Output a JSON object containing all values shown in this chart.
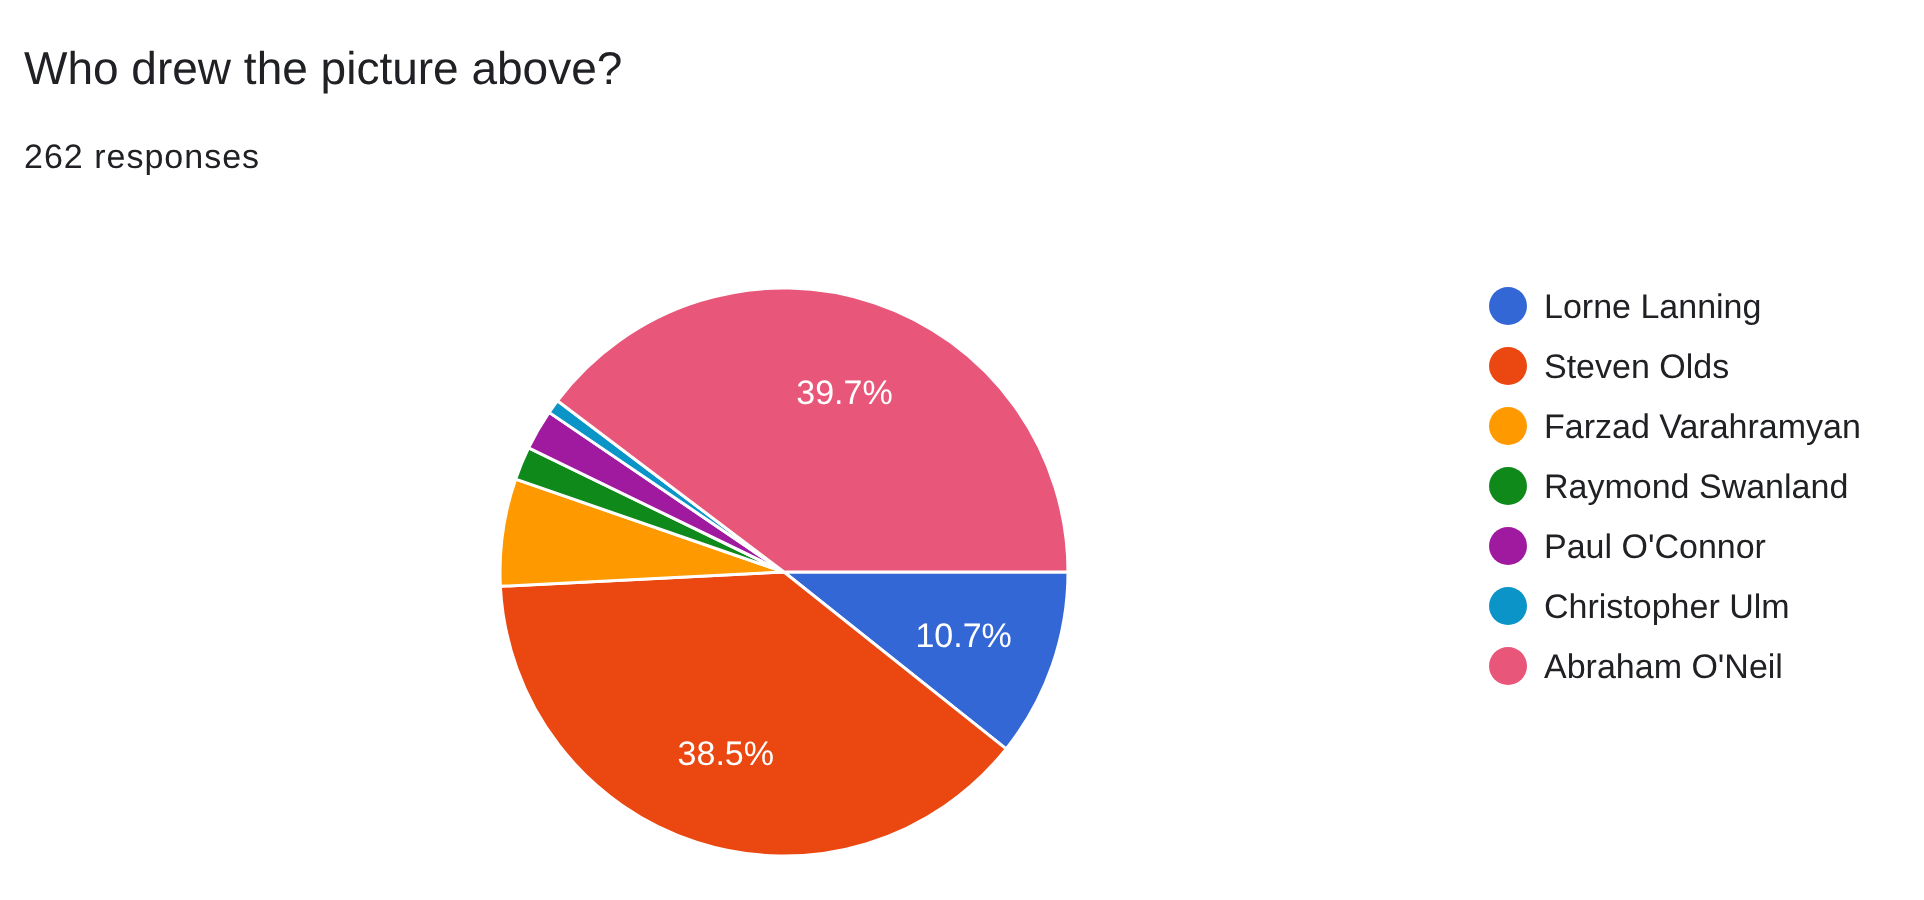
{
  "chart_data": {
    "type": "pie",
    "title": "Who drew the picture above?",
    "subtitle": "262 responses",
    "categories": [
      "Lorne Lanning",
      "Steven Olds",
      "Farzad Varahramyan",
      "Raymond Swanland",
      "Paul O'Connor",
      "Christopher Ulm",
      "Abraham O'Neil"
    ],
    "values": [
      10.7,
      38.5,
      6.1,
      1.9,
      2.3,
      0.8,
      39.7
    ],
    "colors": [
      "#3367d6",
      "#ea4711",
      "#ff9900",
      "#10891b",
      "#a01aa0",
      "#0a94c8",
      "#e8567a"
    ],
    "value_labels": [
      "10.7%",
      "38.5%",
      null,
      null,
      null,
      null,
      "39.7%"
    ],
    "legend": "right"
  }
}
